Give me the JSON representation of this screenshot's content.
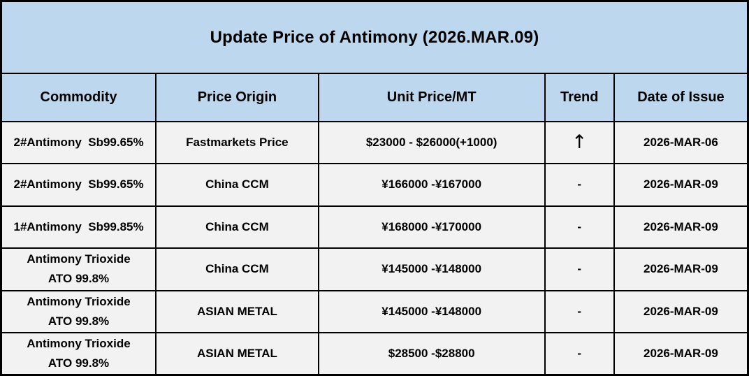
{
  "title": "Update Price of Antimony (2026.MAR.09)",
  "colors": {
    "header_bg": "#BDD7EE",
    "row_bg": "#F2F2F2",
    "border": "#000000",
    "text": "#000000"
  },
  "table": {
    "headers": {
      "commodity": "Commodity",
      "origin": "Price Origin",
      "price": "Unit Price/MT",
      "trend": "Trend",
      "date": "Date of Issue"
    },
    "rows": [
      {
        "commodity": "2#Antimony  Sb99.65%",
        "origin": "Fastmarkets Price",
        "price": "$23000 - $26000(+1000)",
        "trend": "↑",
        "date": "2026-MAR-06"
      },
      {
        "commodity": "2#Antimony  Sb99.65%",
        "origin": "China CCM",
        "price": "¥166000 -¥167000",
        "trend": "-",
        "date": "2026-MAR-09"
      },
      {
        "commodity": "1#Antimony  Sb99.85%",
        "origin": "China CCM",
        "price": "¥168000 -¥170000",
        "trend": "-",
        "date": "2026-MAR-09"
      },
      {
        "commodity": "Antimony Trioxide\nATO 99.8%",
        "origin": "China CCM",
        "price": "¥145000 -¥148000",
        "trend": "-",
        "date": "2026-MAR-09"
      },
      {
        "commodity": "Antimony Trioxide\nATO 99.8%",
        "origin": "ASIAN METAL",
        "price": "¥145000 -¥148000",
        "trend": "-",
        "date": "2026-MAR-09"
      },
      {
        "commodity": "Antimony Trioxide\nATO 99.8%",
        "origin": "ASIAN METAL",
        "price": "$28500 -$28800",
        "trend": "-",
        "date": "2026-MAR-09"
      }
    ]
  }
}
